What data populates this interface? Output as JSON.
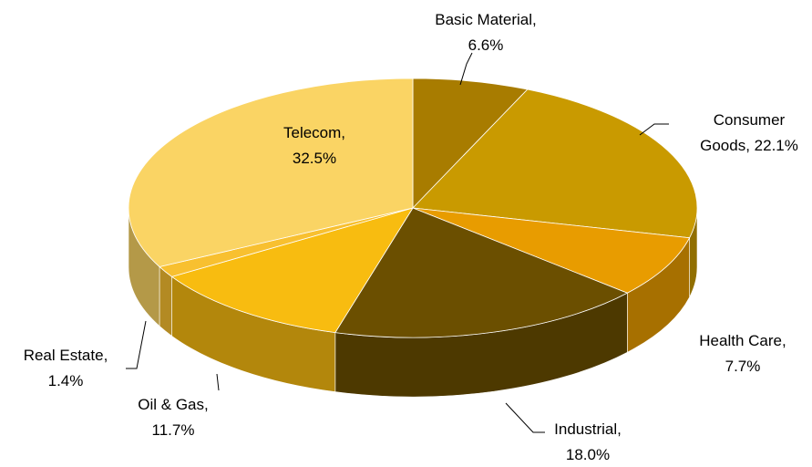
{
  "chart_data": {
    "type": "pie3d",
    "categories": [
      "Basic Material,",
      "Consumer Goods,",
      "Health Care,",
      "Industrial,",
      "Oil & Gas,",
      "Real Estate,",
      "Telecom,"
    ],
    "values": [
      6.6,
      22.1,
      7.7,
      18.0,
      11.7,
      1.4,
      32.5
    ],
    "value_labels": [
      "6.6%",
      "22.1%",
      "7.7%",
      "18.0%",
      "11.7%",
      "1.4%",
      "32.5%"
    ],
    "colors": [
      "#a87c00",
      "#c99a00",
      "#e89c00",
      "#6b4f00",
      "#f8bc10",
      "#f8c030",
      "#fad464"
    ]
  }
}
